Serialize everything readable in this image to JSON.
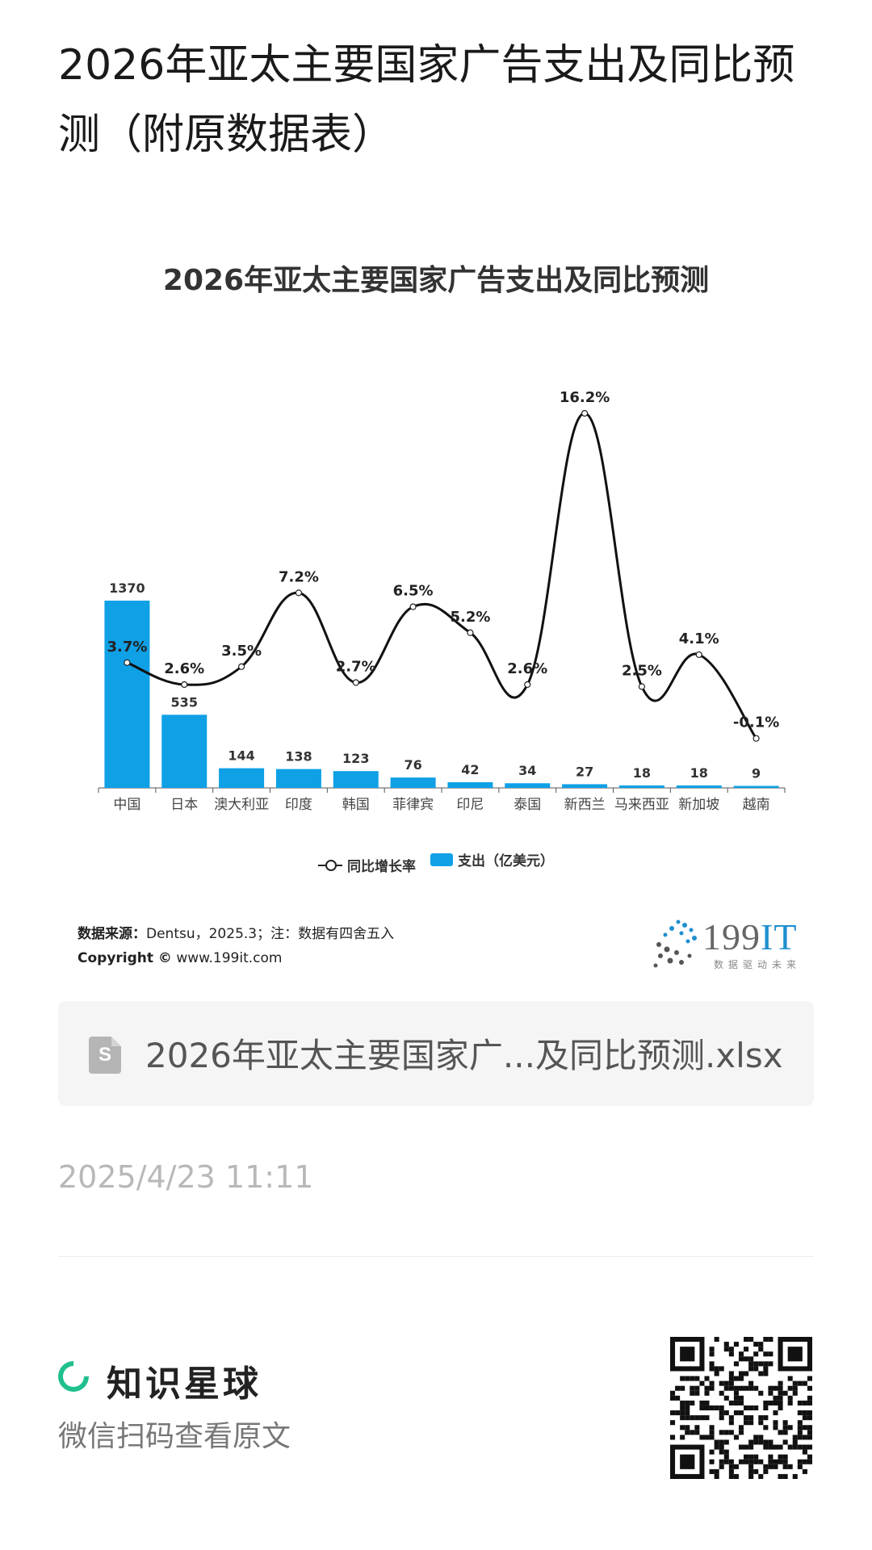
{
  "page": {
    "title": "2026年亚太主要国家广告支出及同比预测（附原数据表）"
  },
  "chart_data": {
    "type": "bar",
    "title": "2026年亚太主要国家广告支出及同比预测",
    "categories": [
      "中国",
      "日本",
      "澳大利亚",
      "印度",
      "韩国",
      "菲律宾",
      "印尼",
      "泰国",
      "新西兰",
      "马来西亚",
      "新加坡",
      "越南"
    ],
    "series": [
      {
        "name": "支出（亿美元）",
        "type": "bar",
        "values": [
          1370,
          535,
          144,
          138,
          123,
          76,
          42,
          34,
          27,
          18,
          18,
          9
        ],
        "color": "#0fa0e6"
      },
      {
        "name": "同比增长率",
        "type": "line",
        "values": [
          3.7,
          2.6,
          3.5,
          7.2,
          2.7,
          6.5,
          5.2,
          2.6,
          16.2,
          2.5,
          4.1,
          -0.1
        ],
        "unit": "%",
        "color": "#111111"
      }
    ],
    "legend_position": "bottom",
    "grid": false
  },
  "legend": {
    "line_label": "同比增长率",
    "bar_label": "支出（亿美元）"
  },
  "source": {
    "prefix": "数据来源：",
    "text": "Dentsu，2025.3；注：数据有四舍五入",
    "copyright_prefix": "Copyright ©",
    "copyright_url": "www.199it.com"
  },
  "logo": {
    "name_main": "199",
    "name_accent": "IT",
    "tagline": "数据驱动未来"
  },
  "file": {
    "icon": "S",
    "name": "2026年亚太主要国家广...及同比预测.xlsx"
  },
  "timestamp": "2025/4/23 11:11",
  "brand": {
    "name": "知识星球",
    "subtitle": "微信扫码查看原文"
  }
}
